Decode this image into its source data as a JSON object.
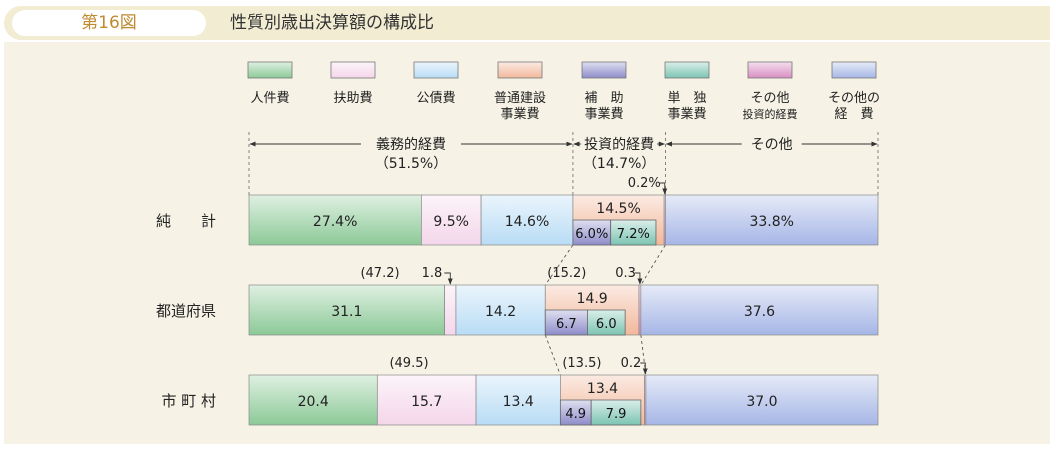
{
  "figure": {
    "number": "第16図",
    "title": "性質別歳出決算額の構成比"
  },
  "legend": [
    {
      "key": "jinken",
      "lines": [
        "人件費"
      ],
      "color": "#8cc997"
    },
    {
      "key": "fujo",
      "lines": [
        "扶助費"
      ],
      "color": "#f4d6ea"
    },
    {
      "key": "kosai",
      "lines": [
        "公債費"
      ],
      "color": "#b9dcf5"
    },
    {
      "key": "futsu",
      "lines": [
        "普通建設",
        "事業費"
      ],
      "color": "#f2b89b"
    },
    {
      "key": "hojo",
      "lines": [
        "補　助",
        "事業費"
      ],
      "color": "#8e8cc9"
    },
    {
      "key": "tandoku",
      "lines": [
        "単　独",
        "事業費"
      ],
      "color": "#7cc4b2"
    },
    {
      "key": "other_inv",
      "lines": [
        "その他",
        "投資的経費"
      ],
      "color": "#d98ec2"
    },
    {
      "key": "other_exp",
      "lines": [
        "その他の",
        "経　費"
      ],
      "color": "#a6b6e6"
    }
  ],
  "groups": {
    "gimu": {
      "label": "義務的経費",
      "pct": "（51.5%）"
    },
    "toshi": {
      "label": "投資的経費",
      "pct": "（14.7%）"
    },
    "sonota": {
      "label": "その他"
    }
  },
  "chart_data": {
    "type": "bar",
    "orientation": "horizontal",
    "stacked": true,
    "unit": "%",
    "categories": [
      "純　　計",
      "都道府県",
      "市 町 村"
    ],
    "series": [
      {
        "name": "人件費",
        "values": [
          27.4,
          31.1,
          20.4
        ]
      },
      {
        "name": "扶助費",
        "values": [
          9.5,
          1.8,
          15.7
        ]
      },
      {
        "name": "公債費",
        "values": [
          14.6,
          14.2,
          13.4
        ]
      },
      {
        "name": "普通建設事業費",
        "values": [
          14.5,
          14.9,
          13.4
        ]
      },
      {
        "name": "補助事業費",
        "values": [
          6.0,
          6.7,
          4.9
        ]
      },
      {
        "name": "単独事業費",
        "values": [
          7.2,
          6.0,
          7.9
        ]
      },
      {
        "name": "その他投資的経費",
        "values": [
          0.2,
          0.3,
          0.2
        ]
      },
      {
        "name": "その他の経費",
        "values": [
          33.8,
          37.6,
          37.0
        ]
      }
    ],
    "subtotals": {
      "義務的経費": [
        "51.5%",
        "(47.2)",
        "(49.5)"
      ],
      "投資的経費": [
        "14.7%",
        "(15.2)",
        "(13.5)"
      ]
    },
    "value_labels": {
      "jinken": [
        "27.4%",
        "31.1",
        "20.4"
      ],
      "fujo": [
        "9.5%",
        "1.8",
        "15.7"
      ],
      "kosai": [
        "14.6%",
        "14.2",
        "13.4"
      ],
      "futsu": [
        "14.5%",
        "14.9",
        "13.4"
      ],
      "hojo": [
        "6.0%",
        "6.7",
        "4.9"
      ],
      "tandoku": [
        "7.2%",
        "6.0",
        "7.9"
      ],
      "other_inv": [
        "0.2%",
        "0.3",
        "0.2"
      ],
      "other_exp": [
        "33.8%",
        "37.6",
        "37.0"
      ]
    }
  }
}
